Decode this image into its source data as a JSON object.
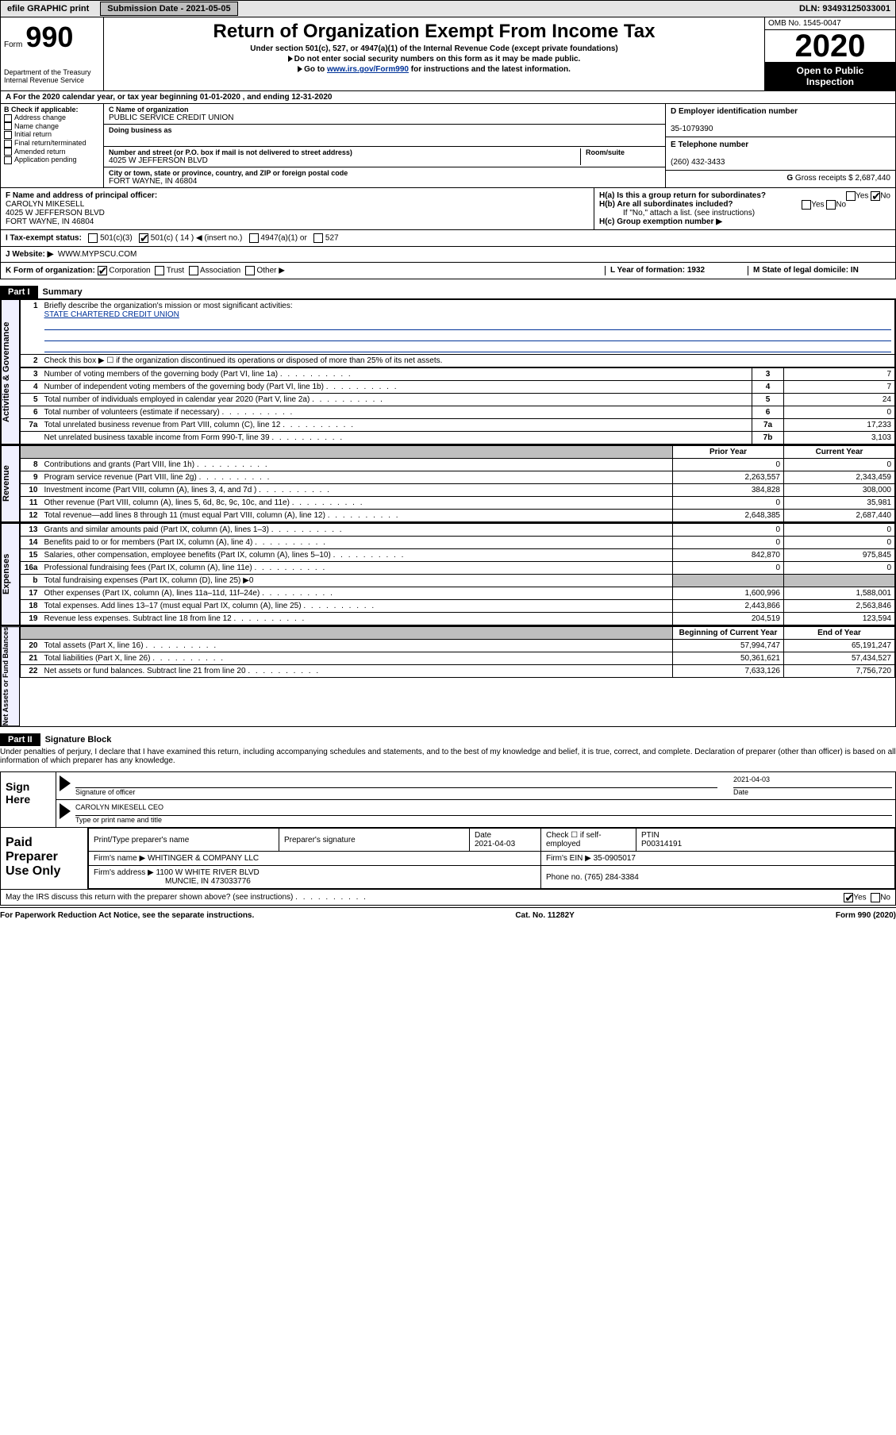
{
  "topbar": {
    "efile": "efile GRAPHIC print",
    "submission_label": "Submission Date - 2021-05-05",
    "dln": "DLN: 93493125033001"
  },
  "header": {
    "form_word": "Form",
    "form_number": "990",
    "dept1": "Department of the Treasury",
    "dept2": "Internal Revenue Service",
    "title": "Return of Organization Exempt From Income Tax",
    "subtitle": "Under section 501(c), 527, or 4947(a)(1) of the Internal Revenue Code (except private foundations)",
    "note1": "Do not enter social security numbers on this form as it may be made public.",
    "note2_pre": "Go to ",
    "note2_link": "www.irs.gov/Form990",
    "note2_post": " for instructions and the latest information.",
    "omb": "OMB No. 1545-0047",
    "year": "2020",
    "inspect1": "Open to Public",
    "inspect2": "Inspection"
  },
  "period": "For the 2020 calendar year, or tax year beginning 01-01-2020   , and ending 12-31-2020",
  "boxB": {
    "label": "B Check if applicable:",
    "opts": [
      "Address change",
      "Name change",
      "Initial return",
      "Final return/terminated",
      "Amended return",
      "Application pending"
    ]
  },
  "boxC": {
    "name_label": "C Name of organization",
    "name": "PUBLIC SERVICE CREDIT UNION",
    "dba_label": "Doing business as",
    "addr_label": "Number and street (or P.O. box if mail is not delivered to street address)",
    "room_label": "Room/suite",
    "addr": "4025 W JEFFERSON BLVD",
    "city_label": "City or town, state or province, country, and ZIP or foreign postal code",
    "city": "FORT WAYNE, IN  46804"
  },
  "boxD": {
    "label": "D Employer identification number",
    "value": "35-1079390"
  },
  "boxE": {
    "label": "E Telephone number",
    "value": "(260) 432-3433"
  },
  "boxG": {
    "label": "G",
    "text": "Gross receipts $ 2,687,440"
  },
  "boxF": {
    "label": "F Name and address of principal officer:",
    "name": "CAROLYN MIKESELL",
    "addr1": "4025 W JEFFERSON BLVD",
    "addr2": "FORT WAYNE, IN  46804"
  },
  "boxH": {
    "a": "H(a)  Is this a group return for subordinates?",
    "b": "H(b)  Are all subordinates included?",
    "note": "If \"No,\" attach a list. (see instructions)",
    "c": "H(c)  Group exemption number ▶",
    "yes": "Yes",
    "no": "No"
  },
  "boxI": {
    "label": "I   Tax-exempt status:",
    "opt1": "501(c)(3)",
    "opt2": "501(c) ( 14 ) ◀ (insert no.)",
    "opt3": "4947(a)(1) or",
    "opt4": "527"
  },
  "boxJ": {
    "label": "J   Website: ▶",
    "value": "WWW.MYPSCU.COM"
  },
  "boxK": {
    "label": "K Form of organization:",
    "opts": [
      "Corporation",
      "Trust",
      "Association",
      "Other ▶"
    ]
  },
  "boxL": {
    "label": "L Year of formation: 1932"
  },
  "boxM": {
    "label": "M State of legal domicile: IN"
  },
  "part1": {
    "hdr": "Part I",
    "title": "Summary",
    "q1": "Briefly describe the organization's mission or most significant activities:",
    "mission": "STATE CHARTERED CREDIT UNION",
    "q2": "Check this box ▶ ☐  if the organization discontinued its operations or disposed of more than 25% of its net assets.",
    "colPrior": "Prior Year",
    "colCurrent": "Current Year",
    "colBegin": "Beginning of Current Year",
    "colEnd": "End of Year",
    "rows_top": [
      {
        "n": "3",
        "d": "Number of voting members of the governing body (Part VI, line 1a)",
        "b": "3",
        "v": "7"
      },
      {
        "n": "4",
        "d": "Number of independent voting members of the governing body (Part VI, line 1b)",
        "b": "4",
        "v": "7"
      },
      {
        "n": "5",
        "d": "Total number of individuals employed in calendar year 2020 (Part V, line 2a)",
        "b": "5",
        "v": "24"
      },
      {
        "n": "6",
        "d": "Total number of volunteers (estimate if necessary)",
        "b": "6",
        "v": "0"
      },
      {
        "n": "7a",
        "d": "Total unrelated business revenue from Part VIII, column (C), line 12",
        "b": "7a",
        "v": "17,233"
      },
      {
        "n": "",
        "d": "Net unrelated business taxable income from Form 990-T, line 39",
        "b": "7b",
        "v": "3,103"
      }
    ],
    "rows_rev": [
      {
        "n": "8",
        "d": "Contributions and grants (Part VIII, line 1h)",
        "p": "0",
        "c": "0"
      },
      {
        "n": "9",
        "d": "Program service revenue (Part VIII, line 2g)",
        "p": "2,263,557",
        "c": "2,343,459"
      },
      {
        "n": "10",
        "d": "Investment income (Part VIII, column (A), lines 3, 4, and 7d )",
        "p": "384,828",
        "c": "308,000"
      },
      {
        "n": "11",
        "d": "Other revenue (Part VIII, column (A), lines 5, 6d, 8c, 9c, 10c, and 11e)",
        "p": "0",
        "c": "35,981"
      },
      {
        "n": "12",
        "d": "Total revenue—add lines 8 through 11 (must equal Part VIII, column (A), line 12)",
        "p": "2,648,385",
        "c": "2,687,440"
      }
    ],
    "rows_exp": [
      {
        "n": "13",
        "d": "Grants and similar amounts paid (Part IX, column (A), lines 1–3)",
        "p": "0",
        "c": "0"
      },
      {
        "n": "14",
        "d": "Benefits paid to or for members (Part IX, column (A), line 4)",
        "p": "0",
        "c": "0"
      },
      {
        "n": "15",
        "d": "Salaries, other compensation, employee benefits (Part IX, column (A), lines 5–10)",
        "p": "842,870",
        "c": "975,845"
      },
      {
        "n": "16a",
        "d": "Professional fundraising fees (Part IX, column (A), line 11e)",
        "p": "0",
        "c": "0"
      },
      {
        "n": "b",
        "d": "Total fundraising expenses (Part IX, column (D), line 25) ▶0",
        "p": "",
        "c": "",
        "grey": true
      },
      {
        "n": "17",
        "d": "Other expenses (Part IX, column (A), lines 11a–11d, 11f–24e)",
        "p": "1,600,996",
        "c": "1,588,001"
      },
      {
        "n": "18",
        "d": "Total expenses. Add lines 13–17 (must equal Part IX, column (A), line 25)",
        "p": "2,443,866",
        "c": "2,563,846"
      },
      {
        "n": "19",
        "d": "Revenue less expenses. Subtract line 18 from line 12",
        "p": "204,519",
        "c": "123,594"
      }
    ],
    "rows_net": [
      {
        "n": "20",
        "d": "Total assets (Part X, line 16)",
        "p": "57,994,747",
        "c": "65,191,247"
      },
      {
        "n": "21",
        "d": "Total liabilities (Part X, line 26)",
        "p": "50,361,621",
        "c": "57,434,527"
      },
      {
        "n": "22",
        "d": "Net assets or fund balances. Subtract line 21 from line 20",
        "p": "7,633,126",
        "c": "7,756,720"
      }
    ],
    "side_gov": "Activities & Governance",
    "side_rev": "Revenue",
    "side_exp": "Expenses",
    "side_net": "Net Assets or Fund Balances"
  },
  "part2": {
    "hdr": "Part II",
    "title": "Signature Block",
    "decl": "Under penalties of perjury, I declare that I have examined this return, including accompanying schedules and statements, and to the best of my knowledge and belief, it is true, correct, and complete. Declaration of preparer (other than officer) is based on all information of which preparer has any knowledge.",
    "sign_here": "Sign Here",
    "sig_officer": "Signature of officer",
    "date": "Date",
    "date_val": "2021-04-03",
    "officer_name": "CAROLYN MIKESELL  CEO",
    "type_name": "Type or print name and title",
    "paid": "Paid Preparer Use Only",
    "prep_name_lbl": "Print/Type preparer's name",
    "prep_sig_lbl": "Preparer's signature",
    "prep_date_lbl": "Date",
    "prep_date": "2021-04-03",
    "check_self": "Check ☐ if self-employed",
    "ptin_lbl": "PTIN",
    "ptin": "P00314191",
    "firm_name_lbl": "Firm's name    ▶",
    "firm_name": "WHITINGER & COMPANY LLC",
    "firm_ein_lbl": "Firm's EIN ▶",
    "firm_ein": "35-0905017",
    "firm_addr_lbl": "Firm's address ▶",
    "firm_addr1": "1100 W WHITE RIVER BLVD",
    "firm_addr2": "MUNCIE, IN  473033776",
    "phone_lbl": "Phone no.",
    "phone": "(765) 284-3384",
    "discuss": "May the IRS discuss this return with the preparer shown above? (see instructions)",
    "yes": "Yes",
    "no": "No"
  },
  "footer": {
    "left": "For Paperwork Reduction Act Notice, see the separate instructions.",
    "mid": "Cat. No. 11282Y",
    "right": "Form 990 (2020)"
  }
}
